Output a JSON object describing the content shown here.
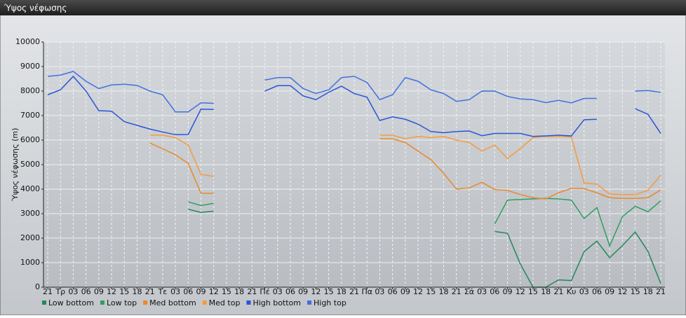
{
  "chart_data": {
    "type": "line",
    "title": "Ύψος νέφωσης",
    "y_label": "Ύψος νέφωσης (m)",
    "categories": [
      "21",
      "Τρ",
      "03",
      "06",
      "09",
      "12",
      "15",
      "18",
      "21",
      "Τε",
      "03",
      "06",
      "09",
      "12",
      "15",
      "18",
      "21",
      "Πέ",
      "03",
      "06",
      "09",
      "12",
      "15",
      "18",
      "21",
      "Πα",
      "03",
      "06",
      "09",
      "12",
      "15",
      "18",
      "21",
      "Σά",
      "03",
      "06",
      "09",
      "12",
      "15",
      "18",
      "21",
      "Κυ",
      "03",
      "06",
      "09",
      "12",
      "15",
      "18",
      "21"
    ],
    "ylim": [
      0,
      10000
    ],
    "yticks": [
      0,
      1000,
      2000,
      3000,
      4000,
      5000,
      6000,
      7000,
      8000,
      9000,
      10000
    ],
    "grid": true,
    "legend": "bottom-left",
    "series": [
      {
        "name": "Low bottom",
        "color": "#25875a",
        "values": [
          null,
          null,
          null,
          null,
          null,
          null,
          null,
          null,
          null,
          null,
          null,
          3180,
          3050,
          3100,
          null,
          null,
          null,
          null,
          null,
          null,
          null,
          null,
          null,
          null,
          null,
          null,
          null,
          null,
          null,
          null,
          null,
          null,
          null,
          null,
          null,
          2270,
          2200,
          950,
          0,
          0,
          300,
          270,
          1450,
          1880,
          1200,
          1700,
          2250,
          1460,
          150
        ]
      },
      {
        "name": "Low top",
        "color": "#2f9e62",
        "values": [
          null,
          null,
          null,
          null,
          null,
          null,
          null,
          null,
          null,
          null,
          null,
          3480,
          3330,
          3420,
          null,
          null,
          null,
          null,
          null,
          null,
          null,
          null,
          null,
          null,
          null,
          null,
          null,
          null,
          null,
          null,
          null,
          null,
          null,
          null,
          null,
          2580,
          3550,
          3580,
          3600,
          3620,
          3600,
          3550,
          2800,
          3250,
          1680,
          2880,
          3300,
          3080,
          3520
        ]
      },
      {
        "name": "Med bottom",
        "color": "#e8892a",
        "values": [
          null,
          null,
          null,
          null,
          null,
          null,
          null,
          null,
          5880,
          5650,
          5400,
          5050,
          3830,
          3830,
          null,
          null,
          null,
          null,
          null,
          null,
          null,
          null,
          null,
          null,
          null,
          null,
          6050,
          6050,
          5900,
          5550,
          5200,
          4650,
          4000,
          4050,
          4280,
          3980,
          3950,
          3780,
          3650,
          3600,
          3850,
          4030,
          4020,
          3850,
          3650,
          3620,
          3620,
          3650,
          3970
        ]
      },
      {
        "name": "Med top",
        "color": "#f59b3c",
        "values": [
          null,
          null,
          null,
          null,
          null,
          null,
          null,
          null,
          6200,
          6200,
          6100,
          5800,
          4600,
          4520,
          null,
          null,
          null,
          null,
          null,
          null,
          null,
          null,
          null,
          null,
          null,
          null,
          6200,
          6200,
          6050,
          6150,
          6100,
          6150,
          6000,
          5900,
          5550,
          5800,
          5250,
          5650,
          6100,
          6150,
          6150,
          6130,
          4250,
          4200,
          3800,
          3780,
          3780,
          3950,
          4560
        ]
      },
      {
        "name": "High bottom",
        "color": "#2a55d6",
        "values": [
          7850,
          8050,
          8600,
          8000,
          7200,
          7180,
          6750,
          6600,
          6450,
          6330,
          6220,
          6230,
          7260,
          7250,
          null,
          null,
          null,
          8000,
          8220,
          8220,
          7800,
          7650,
          7950,
          8200,
          7900,
          7750,
          6800,
          6950,
          6850,
          6650,
          6350,
          6300,
          6350,
          6370,
          6180,
          6270,
          6270,
          6270,
          6150,
          6170,
          6200,
          6170,
          6830,
          6850,
          null,
          null,
          7280,
          7050,
          6270
        ]
      },
      {
        "name": "High top",
        "color": "#4170e0",
        "values": [
          8600,
          8650,
          8800,
          8400,
          8100,
          8250,
          8280,
          8230,
          8000,
          7850,
          7150,
          7150,
          7520,
          7500,
          null,
          null,
          null,
          8450,
          8550,
          8550,
          8100,
          7900,
          8050,
          8550,
          8600,
          8350,
          7650,
          7850,
          8550,
          8400,
          8050,
          7900,
          7580,
          7650,
          8000,
          8000,
          7780,
          7680,
          7650,
          7530,
          7620,
          7520,
          7700,
          7700,
          null,
          null,
          8000,
          8020,
          7950
        ]
      }
    ]
  }
}
